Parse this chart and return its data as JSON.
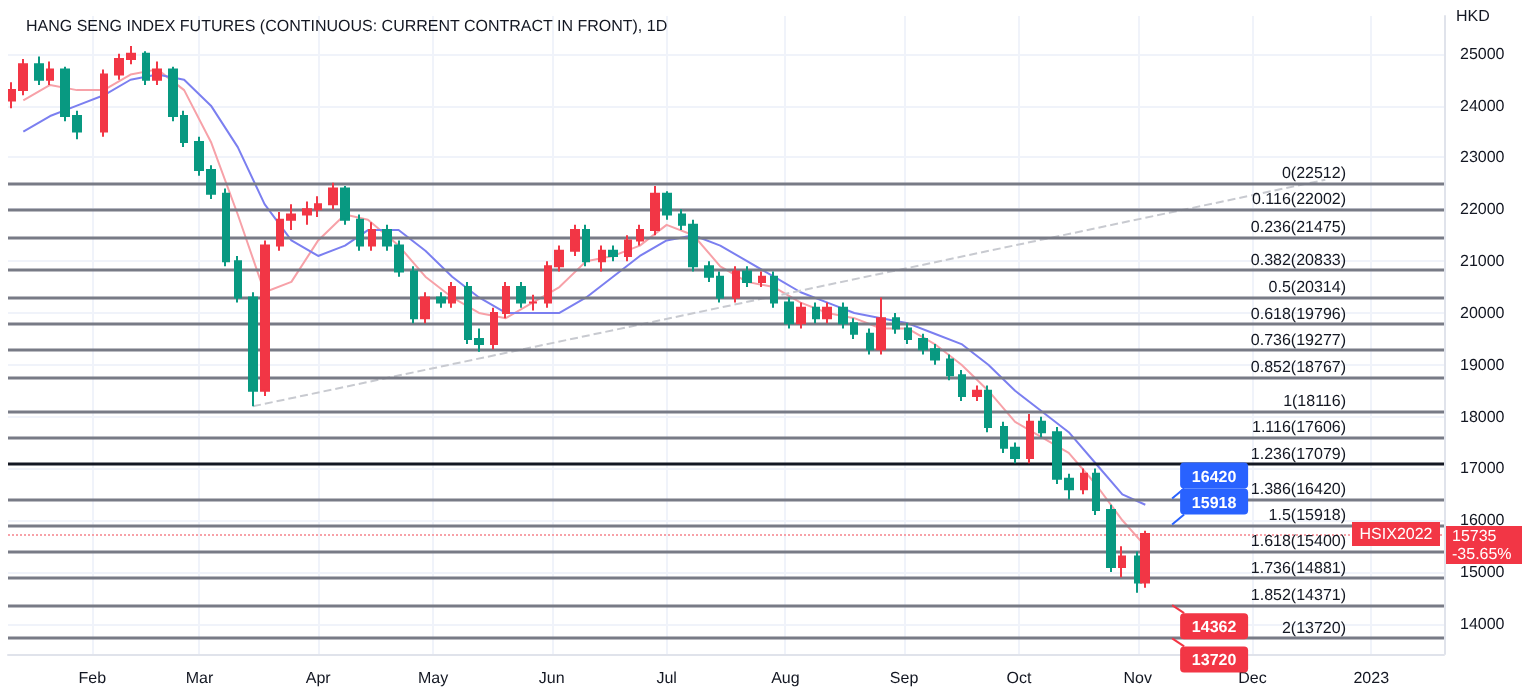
{
  "chart_data": {
    "type": "candlestick",
    "title": "HANG SENG INDEX FUTURES (CONTINUOUS: CURRENT CONTRACT IN FRONT), 1D",
    "ylabel": "HKD",
    "xlim": [
      "2022-01-10",
      "2023-01-20"
    ],
    "xticks": [
      {
        "value": "2022-02-01",
        "label": "Feb"
      },
      {
        "value": "2022-03-01",
        "label": "Mar"
      },
      {
        "value": "2022-04-01",
        "label": "Apr"
      },
      {
        "value": "2022-05-01",
        "label": "May"
      },
      {
        "value": "2022-06-01",
        "label": "Jun"
      },
      {
        "value": "2022-07-01",
        "label": "Jul"
      },
      {
        "value": "2022-08-01",
        "label": "Aug"
      },
      {
        "value": "2022-09-01",
        "label": "Sep"
      },
      {
        "value": "2022-10-01",
        "label": "Oct"
      },
      {
        "value": "2022-11-01",
        "label": "Nov"
      },
      {
        "value": "2022-12-01",
        "label": "Dec"
      },
      {
        "value": "2023-01-01",
        "label": "2023"
      }
    ],
    "ylim": [
      13420,
      25730
    ],
    "yticks": [
      14000,
      15000,
      16000,
      17000,
      18000,
      19000,
      20000,
      21000,
      22000,
      23000,
      24000,
      25000
    ],
    "grid": true,
    "x": [
      "2022-01-11",
      "2022-01-14",
      "2022-01-18",
      "2022-01-21",
      "2022-01-25",
      "2022-01-28",
      "2022-02-04",
      "2022-02-08",
      "2022-02-11",
      "2022-02-15",
      "2022-02-18",
      "2022-02-22",
      "2022-02-25",
      "2022-03-01",
      "2022-03-04",
      "2022-03-08",
      "2022-03-11",
      "2022-03-15",
      "2022-03-18",
      "2022-03-22",
      "2022-03-25",
      "2022-03-29",
      "2022-04-01",
      "2022-04-05",
      "2022-04-08",
      "2022-04-12",
      "2022-04-15",
      "2022-04-19",
      "2022-04-22",
      "2022-04-26",
      "2022-04-29",
      "2022-05-03",
      "2022-05-06",
      "2022-05-10",
      "2022-05-13",
      "2022-05-17",
      "2022-05-20",
      "2022-05-24",
      "2022-05-27",
      "2022-05-31",
      "2022-06-03",
      "2022-06-07",
      "2022-06-10",
      "2022-06-14",
      "2022-06-17",
      "2022-06-21",
      "2022-06-24",
      "2022-06-28",
      "2022-07-01",
      "2022-07-05",
      "2022-07-08",
      "2022-07-12",
      "2022-07-15",
      "2022-07-19",
      "2022-07-22",
      "2022-07-26",
      "2022-07-29",
      "2022-08-02",
      "2022-08-05",
      "2022-08-09",
      "2022-08-12",
      "2022-08-16",
      "2022-08-19",
      "2022-08-23",
      "2022-08-26",
      "2022-08-30",
      "2022-09-02",
      "2022-09-06",
      "2022-09-09",
      "2022-09-13",
      "2022-09-16",
      "2022-09-20",
      "2022-09-23",
      "2022-09-27",
      "2022-09-30",
      "2022-10-04",
      "2022-10-07",
      "2022-10-11",
      "2022-10-14",
      "2022-10-18",
      "2022-10-21",
      "2022-10-25",
      "2022-10-28",
      "2022-11-01",
      "2022-11-03"
    ],
    "ohlc": [
      [
        24100,
        24450,
        23950,
        24300
      ],
      [
        24300,
        24900,
        24200,
        24800
      ],
      [
        24800,
        24950,
        24400,
        24500
      ],
      [
        24500,
        24850,
        24400,
        24700
      ],
      [
        24700,
        24750,
        23700,
        23800
      ],
      [
        23800,
        23900,
        23350,
        23500
      ],
      [
        23500,
        24700,
        23400,
        24600
      ],
      [
        24600,
        25000,
        24500,
        24900
      ],
      [
        24900,
        25150,
        24800,
        25000
      ],
      [
        25000,
        25050,
        24400,
        24500
      ],
      [
        24500,
        24850,
        24400,
        24700
      ],
      [
        24700,
        24750,
        23700,
        23800
      ],
      [
        23800,
        23900,
        23200,
        23300
      ],
      [
        23300,
        23400,
        22650,
        22760
      ],
      [
        22760,
        22850,
        22200,
        22300
      ],
      [
        22300,
        22400,
        20900,
        21000
      ],
      [
        21000,
        21100,
        20200,
        20300
      ],
      [
        20300,
        20400,
        18200,
        18500
      ],
      [
        18500,
        21400,
        18400,
        21300
      ],
      [
        21300,
        21950,
        21200,
        21800
      ],
      [
        21800,
        22100,
        21600,
        21900
      ],
      [
        21900,
        22150,
        21700,
        22000
      ],
      [
        22000,
        22250,
        21850,
        22100
      ],
      [
        22100,
        22512,
        22000,
        22400
      ],
      [
        22400,
        22450,
        21700,
        21800
      ],
      [
        21800,
        21900,
        21200,
        21300
      ],
      [
        21300,
        21750,
        21200,
        21600
      ],
      [
        21600,
        21700,
        21200,
        21300
      ],
      [
        21300,
        21400,
        20700,
        20800
      ],
      [
        20800,
        20900,
        19800,
        19900
      ],
      [
        19900,
        20400,
        19800,
        20300
      ],
      [
        20300,
        20400,
        20100,
        20200
      ],
      [
        20200,
        20600,
        20100,
        20500
      ],
      [
        20500,
        20600,
        19400,
        19500
      ],
      [
        19500,
        19700,
        19250,
        19400
      ],
      [
        19400,
        20100,
        19300,
        20000
      ],
      [
        20000,
        20600,
        19900,
        20500
      ],
      [
        20500,
        20600,
        20100,
        20200
      ],
      [
        20200,
        20350,
        20050,
        20200
      ],
      [
        20200,
        21000,
        20100,
        20900
      ],
      [
        20900,
        21300,
        20800,
        21200
      ],
      [
        21200,
        21700,
        21100,
        21600
      ],
      [
        21600,
        21700,
        20900,
        21000
      ],
      [
        21000,
        21300,
        20800,
        21200
      ],
      [
        21200,
        21300,
        21000,
        21100
      ],
      [
        21100,
        21500,
        21000,
        21400
      ],
      [
        21400,
        21700,
        21300,
        21600
      ],
      [
        21600,
        22450,
        21500,
        22300
      ],
      [
        22300,
        22350,
        21800,
        21900
      ],
      [
        21900,
        22000,
        21600,
        21700
      ],
      [
        21700,
        21800,
        20800,
        20900
      ],
      [
        20900,
        21000,
        20600,
        20700
      ],
      [
        20700,
        20800,
        20200,
        20300
      ],
      [
        20300,
        20900,
        20200,
        20800
      ],
      [
        20800,
        20900,
        20500,
        20600
      ],
      [
        20600,
        20800,
        20500,
        20700
      ],
      [
        20700,
        20800,
        20100,
        20200
      ],
      [
        20200,
        20300,
        19700,
        19800
      ],
      [
        19800,
        20200,
        19700,
        20100
      ],
      [
        20100,
        20200,
        19800,
        19900
      ],
      [
        19900,
        20200,
        19800,
        20100
      ],
      [
        20100,
        20200,
        19700,
        19800
      ],
      [
        19800,
        19900,
        19500,
        19600
      ],
      [
        19600,
        19700,
        19200,
        19300
      ],
      [
        19300,
        20300,
        19200,
        19900
      ],
      [
        19900,
        20000,
        19600,
        19700
      ],
      [
        19700,
        19800,
        19400,
        19500
      ],
      [
        19500,
        19600,
        19200,
        19300
      ],
      [
        19300,
        19400,
        19000,
        19100
      ],
      [
        19100,
        19200,
        18700,
        18800
      ],
      [
        18800,
        18900,
        18300,
        18400
      ],
      [
        18400,
        18600,
        18300,
        18500
      ],
      [
        18500,
        18600,
        17700,
        17800
      ],
      [
        17800,
        17900,
        17300,
        17400
      ],
      [
        17400,
        17500,
        17100,
        17200
      ],
      [
        17200,
        18050,
        17100,
        17900
      ],
      [
        17900,
        18000,
        17600,
        17700
      ],
      [
        17700,
        17800,
        16700,
        16800
      ],
      [
        16800,
        16900,
        16400,
        16600
      ],
      [
        16600,
        17000,
        16500,
        16900
      ],
      [
        16900,
        17000,
        16100,
        16200
      ],
      [
        16200,
        16300,
        15000,
        15100
      ],
      [
        15100,
        15500,
        14900,
        15300
      ],
      [
        15300,
        15400,
        14600,
        14800
      ],
      [
        14800,
        15800,
        14700,
        15735
      ]
    ],
    "series": [
      {
        "type": "line",
        "color": "#f7a1a8",
        "marker": "none",
        "x": [
          "2022-01-14",
          "2022-01-21",
          "2022-01-28",
          "2022-02-04",
          "2022-02-11",
          "2022-02-18",
          "2022-02-25",
          "2022-03-04",
          "2022-03-11",
          "2022-03-18",
          "2022-03-25",
          "2022-04-01",
          "2022-04-08",
          "2022-04-14",
          "2022-04-22",
          "2022-04-29",
          "2022-05-06",
          "2022-05-13",
          "2022-05-20",
          "2022-05-27",
          "2022-06-03",
          "2022-06-10",
          "2022-06-17",
          "2022-06-24",
          "2022-07-01",
          "2022-07-08",
          "2022-07-15",
          "2022-07-22",
          "2022-07-29",
          "2022-08-05",
          "2022-08-12",
          "2022-08-19",
          "2022-08-26",
          "2022-09-02",
          "2022-09-09",
          "2022-09-16",
          "2022-09-23",
          "2022-09-30",
          "2022-10-07",
          "2022-10-14",
          "2022-10-21",
          "2022-10-28",
          "2022-11-03"
        ],
        "values": [
          24100,
          24400,
          24300,
          24300,
          24600,
          24700,
          24300,
          23300,
          21900,
          20400,
          20600,
          21400,
          21900,
          21800,
          21300,
          20700,
          20300,
          20000,
          19900,
          20200,
          20500,
          21000,
          21100,
          21300,
          21700,
          21500,
          20900,
          20600,
          20500,
          20200,
          20000,
          19900,
          19700,
          19700,
          19400,
          19000,
          18500,
          17900,
          17600,
          17300,
          16700,
          16000,
          15500
        ]
      },
      {
        "type": "line",
        "color": "#7b7ff0",
        "marker": "none",
        "x": [
          "2022-01-14",
          "2022-01-21",
          "2022-01-28",
          "2022-02-04",
          "2022-02-11",
          "2022-02-18",
          "2022-02-25",
          "2022-03-04",
          "2022-03-11",
          "2022-03-18",
          "2022-03-25",
          "2022-04-01",
          "2022-04-08",
          "2022-04-14",
          "2022-04-22",
          "2022-04-29",
          "2022-05-06",
          "2022-05-13",
          "2022-05-20",
          "2022-05-27",
          "2022-06-03",
          "2022-06-10",
          "2022-06-17",
          "2022-06-24",
          "2022-07-01",
          "2022-07-08",
          "2022-07-15",
          "2022-07-22",
          "2022-07-29",
          "2022-08-05",
          "2022-08-12",
          "2022-08-19",
          "2022-08-26",
          "2022-09-02",
          "2022-09-09",
          "2022-09-16",
          "2022-09-23",
          "2022-09-30",
          "2022-10-07",
          "2022-10-14",
          "2022-10-21",
          "2022-10-28",
          "2022-11-03"
        ],
        "values": [
          23500,
          23800,
          24000,
          24200,
          24500,
          24600,
          24500,
          24000,
          23200,
          22100,
          21400,
          21100,
          21300,
          21600,
          21600,
          21200,
          20700,
          20300,
          20000,
          20000,
          20000,
          20300,
          20700,
          21100,
          21400,
          21500,
          21300,
          21000,
          20700,
          20400,
          20200,
          20000,
          19900,
          19800,
          19600,
          19400,
          19000,
          18500,
          18100,
          17700,
          17100,
          16500,
          16300
        ]
      },
      {
        "type": "line",
        "color": "#c8cad0",
        "marker": "none",
        "line_style": "dashed",
        "x": [
          "2022-03-15",
          "2022-12-20"
        ],
        "values": [
          18200,
          22570
        ]
      }
    ],
    "ref_lines": [
      {
        "axis": "y",
        "value": 22512,
        "label": "0(22512)",
        "color": "#787b86"
      },
      {
        "axis": "y",
        "value": 22002,
        "label": "0.116(22002)",
        "color": "#787b86"
      },
      {
        "axis": "y",
        "value": 21475,
        "label": "0.236(21475)",
        "color": "#787b86"
      },
      {
        "axis": "y",
        "value": 20833,
        "label": "0.382(20833)",
        "color": "#787b86"
      },
      {
        "axis": "y",
        "value": 20314,
        "label": "0.5(20314)",
        "color": "#787b86"
      },
      {
        "axis": "y",
        "value": 19796,
        "label": "0.618(19796)",
        "color": "#787b86"
      },
      {
        "axis": "y",
        "value": 19277,
        "label": "0.736(19277)",
        "color": "#787b86"
      },
      {
        "axis": "y",
        "value": 18767,
        "label": "0.852(18767)",
        "color": "#787b86"
      },
      {
        "axis": "y",
        "value": 18116,
        "label": "1(18116)",
        "color": "#787b86"
      },
      {
        "axis": "y",
        "value": 17606,
        "label": "1.116(17606)",
        "color": "#787b86"
      },
      {
        "axis": "y",
        "value": 17079,
        "label": "1.236(17079)",
        "color": "#131722"
      },
      {
        "axis": "y",
        "value": 16420,
        "label": "1.386(16420)",
        "color": "#787b86"
      },
      {
        "axis": "y",
        "value": 15918,
        "label": "1.5(15918)",
        "color": "#787b86"
      },
      {
        "axis": "y",
        "value": 15400,
        "label": "1.618(15400)",
        "color": "#787b86"
      },
      {
        "axis": "y",
        "value": 14881,
        "label": "1.736(14881)",
        "color": "#787b86"
      },
      {
        "axis": "y",
        "value": 14371,
        "label": "1.852(14371)",
        "color": "#787b86"
      },
      {
        "axis": "y",
        "value": 13720,
        "label": "2(13720)",
        "color": "#787b86"
      },
      {
        "axis": "y",
        "value": 15735,
        "label": null,
        "color": "#f7a1a8",
        "line_style": "dotted"
      }
    ],
    "annotations": [
      {
        "text": "16420",
        "x": "2022-11-10",
        "y": 16420
      },
      {
        "text": "15918",
        "x": "2022-11-10",
        "y": 15918
      },
      {
        "text": "14362",
        "x": "2022-11-10",
        "y": 14362
      },
      {
        "text": "13720",
        "x": "2022-11-10",
        "y": 13720
      },
      "HSIX2022",
      "15735",
      "-35.65%"
    ]
  }
}
